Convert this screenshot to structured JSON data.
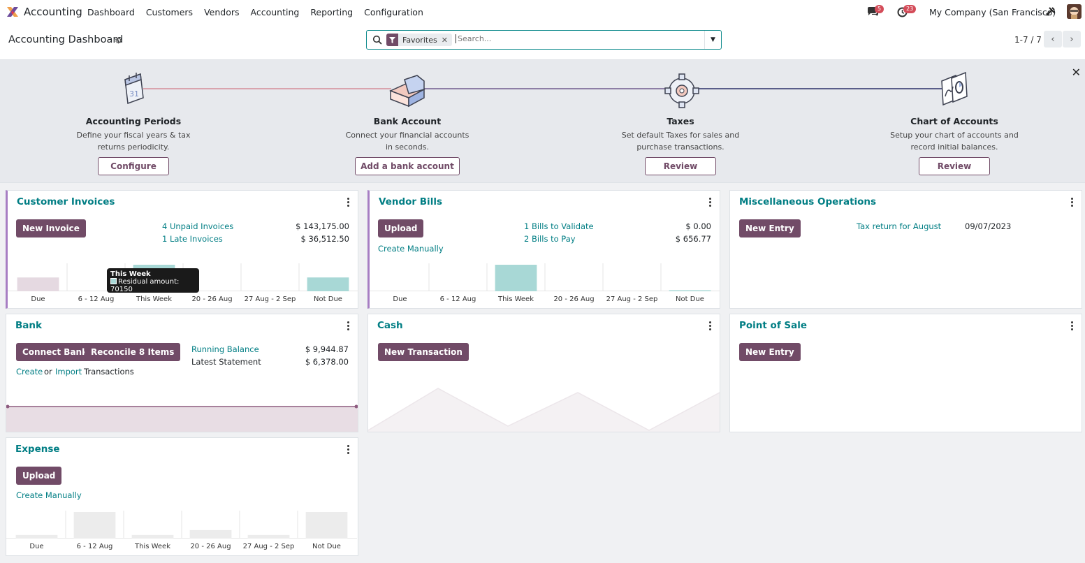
{
  "nav": {
    "app_name": "Accounting",
    "menu": [
      "Dashboard",
      "Customers",
      "Vendors",
      "Accounting",
      "Reporting",
      "Configuration"
    ],
    "messages_count": "5",
    "activities_count": "23",
    "company": "My Company (San Francisco)"
  },
  "control": {
    "title": "Accounting Dashboard",
    "facet": "Favorites",
    "search_placeholder": "Search...",
    "pager": "1-7 / 7"
  },
  "onboarding": {
    "steps": [
      {
        "title": "Accounting Periods",
        "desc": "Define your fiscal years & tax returns periodicity.",
        "button": "Configure"
      },
      {
        "title": "Bank Account",
        "desc": "Connect your financial accounts in seconds.",
        "button": "Add a bank account"
      },
      {
        "title": "Taxes",
        "desc": "Set default Taxes for sales and purchase transactions.",
        "button": "Review"
      },
      {
        "title": "Chart of Accounts",
        "desc": "Setup your chart of accounts and record initial balances.",
        "button": "Review"
      }
    ]
  },
  "customer_invoices": {
    "title": "Customer Invoices",
    "button": "New Invoice",
    "rows": [
      {
        "label": "4 Unpaid Invoices",
        "amount": "$ 143,175.00"
      },
      {
        "label": "1 Late Invoices",
        "amount": "$ 36,512.50"
      }
    ],
    "tooltip_title": "This Week",
    "tooltip_text": "Residual amount: 70150"
  },
  "vendor_bills": {
    "title": "Vendor Bills",
    "button": "Upload",
    "create_link": "Create Manually",
    "rows": [
      {
        "label": "1 Bills to Validate",
        "amount": "$ 0.00"
      },
      {
        "label": "2 Bills to Pay",
        "amount": "$ 656.77"
      }
    ]
  },
  "misc": {
    "title": "Miscellaneous Operations",
    "button": "New Entry",
    "link": "Tax return for August",
    "date": "09/07/2023"
  },
  "bank": {
    "title": "Bank",
    "button_connect": "Connect Bank",
    "button_reconcile": "Reconcile 8 Items",
    "create": "Create",
    "or": "or",
    "import": "Import",
    "transactions": "Transactions",
    "rows": [
      {
        "label": "Running Balance",
        "amount": "$ 9,944.87"
      },
      {
        "label": "Latest Statement",
        "amount": "$ 6,378.00"
      }
    ]
  },
  "cash": {
    "title": "Cash",
    "button": "New Transaction"
  },
  "pos": {
    "title": "Point of Sale",
    "button": "New Entry"
  },
  "expense": {
    "title": "Expense",
    "button": "Upload",
    "create_link": "Create Manually"
  },
  "chart_data": [
    {
      "type": "bar",
      "name_ref": "customer_invoices",
      "categories": [
        "Due",
        "6 - 12 Aug",
        "This Week",
        "20 - 26 Aug",
        "27 Aug - 2 Sep",
        "Not Due"
      ],
      "values": [
        36512.5,
        0,
        70150,
        0,
        0,
        36512.5
      ],
      "colors": [
        "#e5d9e1",
        "#a8d8d6",
        "#a8d8d6",
        "#a8d8d6",
        "#a8d8d6",
        "#a8d8d6"
      ]
    },
    {
      "type": "bar",
      "name_ref": "vendor_bills",
      "categories": [
        "Due",
        "6 - 12 Aug",
        "This Week",
        "20 - 26 Aug",
        "27 Aug - 2 Sep",
        "Not Due"
      ],
      "values": [
        0,
        0,
        656.77,
        0,
        0,
        15
      ],
      "colors": [
        "#a8d8d6",
        "#a8d8d6",
        "#a8d8d6",
        "#a8d8d6",
        "#a8d8d6",
        "#a8d8d6"
      ]
    },
    {
      "type": "bar",
      "name_ref": "expense",
      "categories": [
        "Due",
        "6 - 12 Aug",
        "This Week",
        "20 - 26 Aug",
        "27 Aug - 2 Sep",
        "Not Due"
      ],
      "values": [
        3,
        22,
        3,
        7,
        3,
        22
      ],
      "colors": [
        "#ececec",
        "#ececec",
        "#ececec",
        "#ececec",
        "#ececec",
        "#ececec"
      ]
    }
  ]
}
